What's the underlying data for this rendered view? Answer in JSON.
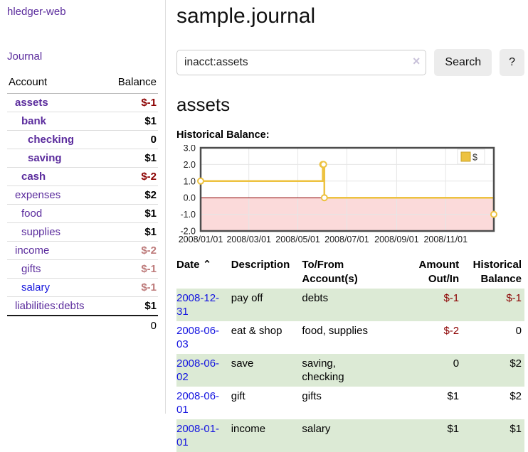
{
  "colors": {
    "link_purple": "#5b2c9d",
    "link_blue": "#1616dd",
    "date_link_blue": "#1414e0",
    "negative_strong": "#8b0000",
    "negative_soft": "#bd7a7a",
    "row_green": "#dcead5",
    "button_gray": "#ececec",
    "accent_gold": "#edc240"
  },
  "sidebar": {
    "brand": "hledger-web",
    "journal_link": "Journal",
    "accounts_table": {
      "headers": {
        "account": "Account",
        "balance": "Balance"
      },
      "rows": [
        {
          "name": "assets",
          "indent": 1,
          "bold": true,
          "link_color": "purple",
          "balance": "$-1",
          "balance_color": "strong-neg"
        },
        {
          "name": "bank",
          "indent": 2,
          "bold": true,
          "link_color": "purple",
          "balance": "$1",
          "balance_color": "default"
        },
        {
          "name": "checking",
          "indent": 3,
          "bold": true,
          "link_color": "purple",
          "balance": "0",
          "balance_color": "default"
        },
        {
          "name": "saving",
          "indent": 3,
          "bold": true,
          "link_color": "purple",
          "balance": "$1",
          "balance_color": "default"
        },
        {
          "name": "cash",
          "indent": 2,
          "bold": true,
          "link_color": "purple",
          "balance": "$-2",
          "balance_color": "strong-neg"
        },
        {
          "name": "expenses",
          "indent": 1,
          "bold": false,
          "link_color": "purple",
          "balance": "$2",
          "balance_color": "default"
        },
        {
          "name": "food",
          "indent": 2,
          "bold": false,
          "link_color": "purple",
          "balance": "$1",
          "balance_color": "default"
        },
        {
          "name": "supplies",
          "indent": 2,
          "bold": false,
          "link_color": "purple",
          "balance": "$1",
          "balance_color": "default"
        },
        {
          "name": "income",
          "indent": 1,
          "bold": false,
          "link_color": "purple",
          "balance": "$-2",
          "balance_color": "soft-neg"
        },
        {
          "name": "gifts",
          "indent": 2,
          "bold": false,
          "link_color": "purple",
          "balance": "$-1",
          "balance_color": "soft-neg"
        },
        {
          "name": "salary",
          "indent": 2,
          "bold": false,
          "link_color": "blue",
          "balance": "$-1",
          "balance_color": "soft-neg"
        },
        {
          "name": "liabilities:debts",
          "indent": 1,
          "bold": false,
          "link_color": "purple",
          "balance": "$1",
          "balance_color": "default"
        }
      ],
      "total": "0"
    }
  },
  "main": {
    "title": "sample.journal",
    "search": {
      "value": "inacct:assets",
      "clear_icon": "×",
      "search_button": "Search",
      "help_button": "?"
    },
    "account_heading": "assets",
    "chart_heading": "Historical Balance:"
  },
  "chart_data": {
    "type": "line",
    "step": true,
    "title": "Historical Balance:",
    "series": [
      {
        "name": "$",
        "color": "#edc240",
        "points": [
          [
            "2008-01-01",
            1
          ],
          [
            "2008-06-01",
            2
          ],
          [
            "2008-06-02",
            2
          ],
          [
            "2008-06-03",
            0
          ],
          [
            "2008-12-31",
            -1
          ]
        ]
      }
    ],
    "x_range": [
      "2008-01-01",
      "2008-12-31"
    ],
    "x_ticks": [
      "2008/01/01",
      "2008/03/01",
      "2008/05/01",
      "2008/07/01",
      "2008/09/01",
      "2008/11/01"
    ],
    "y_ticks": [
      3.0,
      2.0,
      1.0,
      0.0,
      -1.0,
      -2.0
    ],
    "ylim": [
      -2,
      3
    ],
    "grid": true,
    "negative_fill": "#fbdada",
    "zero_line_color": "#8b0000",
    "border_color": "#4d4d4d",
    "grid_color": "#e6e6e6",
    "legend": "$",
    "legend_position": "top-right"
  },
  "register": {
    "headers": {
      "date": "Date",
      "sort_icon": "⌃",
      "description": "Description",
      "accounts_line1": "To/From",
      "accounts_line2": "Account(s)",
      "amount_line1": "Amount",
      "amount_line2": "Out/In",
      "balance_line1": "Historical",
      "balance_line2": "Balance"
    },
    "rows": [
      {
        "date": "2008-12-31",
        "description": "pay off",
        "accounts": "debts",
        "amount": "$-1",
        "amount_negative": true,
        "balance": "$-1",
        "balance_negative": true,
        "shaded": true
      },
      {
        "date": "2008-06-03",
        "description": "eat & shop",
        "accounts": "food, supplies",
        "amount": "$-2",
        "amount_negative": true,
        "balance": "0",
        "balance_negative": false,
        "shaded": false
      },
      {
        "date": "2008-06-02",
        "description": "save",
        "accounts": "saving,\nchecking",
        "amount": "0",
        "amount_negative": false,
        "balance": "$2",
        "balance_negative": false,
        "shaded": true
      },
      {
        "date": "2008-06-01",
        "description": "gift",
        "accounts": "gifts",
        "amount": "$1",
        "amount_negative": false,
        "balance": "$2",
        "balance_negative": false,
        "shaded": false
      },
      {
        "date": "2008-01-01",
        "description": "income",
        "accounts": "salary",
        "amount": "$1",
        "amount_negative": false,
        "balance": "$1",
        "balance_negative": false,
        "shaded": true
      }
    ]
  }
}
